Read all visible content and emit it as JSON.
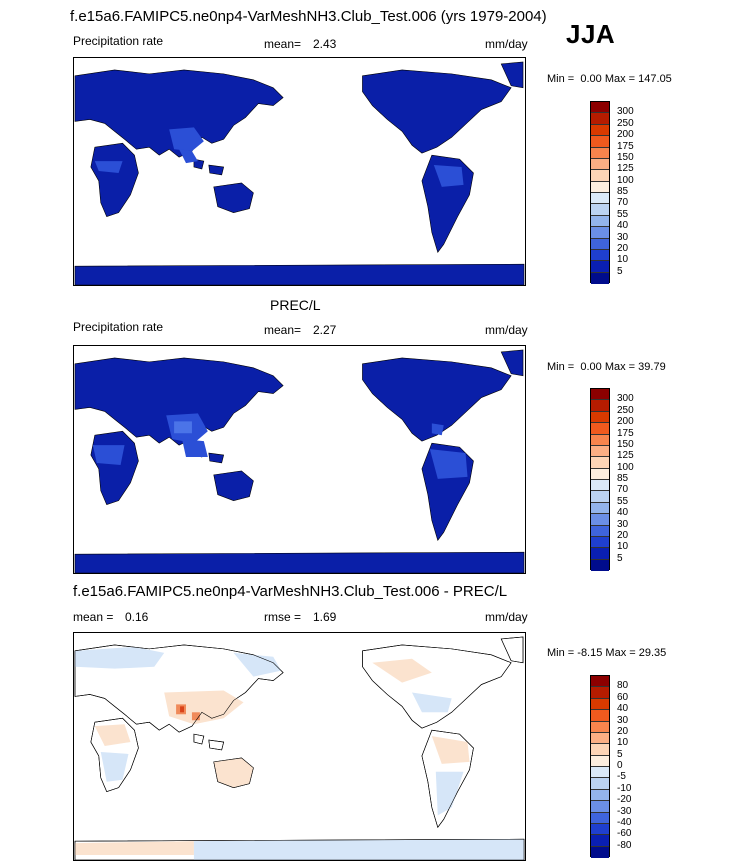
{
  "header": {
    "title": "f.e15a6.FAMIPC5.ne0np4-VarMeshNH3.Club_Test.006 (yrs 1979-2004)",
    "season": "JJA"
  },
  "panels": [
    {
      "id": "test",
      "left_label": "Precipitation rate",
      "stat_label": "mean=",
      "stat_value": "2.43",
      "units": "mm/day",
      "min_label": "Min =",
      "min_value": "0.00",
      "max_label": "Max =",
      "max_value": "147.05",
      "colorbar": {
        "levels": [
          "300",
          "250",
          "200",
          "175",
          "150",
          "125",
          "100",
          "85",
          "70",
          "55",
          "40",
          "30",
          "20",
          "10",
          "5"
        ],
        "colors": [
          "#8c0000",
          "#b51c00",
          "#d93a00",
          "#f05a1e",
          "#f7844d",
          "#fbae84",
          "#fdd4b6",
          "#fdeedf",
          "#dbe9f8",
          "#bcd3f2",
          "#93b4ec",
          "#6b8fe6",
          "#3f64dc",
          "#1f3fcf",
          "#0a1fb2",
          "#000c8c"
        ]
      }
    },
    {
      "id": "obs",
      "title": "PREC/L",
      "left_label": "Precipitation rate",
      "stat_label": "mean=",
      "stat_value": "2.27",
      "units": "mm/day",
      "min_label": "Min =",
      "min_value": "0.00",
      "max_label": "Max =",
      "max_value": "39.79",
      "colorbar": {
        "levels": [
          "300",
          "250",
          "200",
          "175",
          "150",
          "125",
          "100",
          "85",
          "70",
          "55",
          "40",
          "30",
          "20",
          "10",
          "5"
        ],
        "colors": [
          "#8c0000",
          "#b51c00",
          "#d93a00",
          "#f05a1e",
          "#f7844d",
          "#fbae84",
          "#fdd4b6",
          "#fdeedf",
          "#dbe9f8",
          "#bcd3f2",
          "#93b4ec",
          "#6b8fe6",
          "#3f64dc",
          "#1f3fcf",
          "#0a1fb2",
          "#000c8c"
        ]
      }
    },
    {
      "id": "diff",
      "title": "f.e15a6.FAMIPC5.ne0np4-VarMeshNH3.Club_Test.006 - PREC/L",
      "stat_label": "mean =",
      "stat_value": "0.16",
      "rmse_label": "rmse =",
      "rmse_value": "1.69",
      "units": "mm/day",
      "min_label": "Min =",
      "min_value": "-8.15",
      "max_label": "Max =",
      "max_value": "29.35",
      "colorbar": {
        "levels": [
          "80",
          "60",
          "40",
          "30",
          "20",
          "10",
          "5",
          "0",
          "-5",
          "-10",
          "-20",
          "-30",
          "-40",
          "-60",
          "-80"
        ],
        "colors": [
          "#8c0000",
          "#b51c00",
          "#d93a00",
          "#f05a1e",
          "#f7844d",
          "#fbae84",
          "#fdd4b6",
          "#fdeedf",
          "#dbe9f8",
          "#bcd3f2",
          "#93b4ec",
          "#6b8fe6",
          "#3f64dc",
          "#1f3fcf",
          "#0a1fb2",
          "#000c8c"
        ]
      }
    }
  ],
  "map_colors": {
    "land_base": "#0a1fa8",
    "land_wet": "#2b4fd6",
    "land_wetter": "#4b74e8",
    "diff_pos": "#fbe3cf",
    "diff_neg": "#d6e6f8",
    "diff_hot": "#f08a5a",
    "diff_hotter": "#d9431a",
    "ocean": "#ffffff",
    "coast": "#000000"
  }
}
